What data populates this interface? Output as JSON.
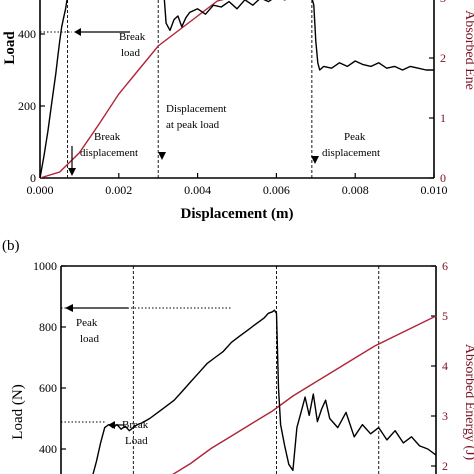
{
  "chart_data": [
    {
      "panel_label": "",
      "type": "line",
      "xlabel": "Displacement (m)",
      "ylabel": "Load",
      "ylabel_right": "Absorbed Ene",
      "xlim": [
        0.0,
        0.01
      ],
      "ylim": [
        0,
        600
      ],
      "ylim_right": [
        0,
        3.6
      ],
      "xticks": [
        "0.000",
        "0.002",
        "0.004",
        "0.006",
        "0.008",
        "0.010"
      ],
      "xtick_values": [
        0.0,
        0.002,
        0.004,
        0.006,
        0.008,
        0.01
      ],
      "yticks": [
        {
          "v": 0,
          "label": "0"
        },
        {
          "v": 200,
          "label": "200"
        },
        {
          "v": 400,
          "label": "400"
        }
      ],
      "yticks_right": [
        {
          "v": 0,
          "label": "0"
        },
        {
          "v": 1,
          "label": "1"
        },
        {
          "v": 2,
          "label": "2"
        },
        {
          "v": 3,
          "label": "3"
        }
      ],
      "series": [
        {
          "axis": "left",
          "color": "#000000",
          "x": [
            0.0,
            0.0001,
            0.0002,
            0.0003,
            0.0004,
            0.00045,
            0.0005,
            0.00055,
            0.0006,
            0.00065,
            0.0007,
            0.00075,
            0.0008,
            0.00085,
            0.0009,
            0.001,
            0.0011,
            0.0012,
            0.0014,
            0.0016,
            0.0018,
            0.002,
            0.0022,
            0.0024,
            0.0026,
            0.0028,
            0.0029,
            0.003,
            0.00305,
            0.0031,
            0.00315,
            0.0032,
            0.0033,
            0.0034,
            0.0035,
            0.0036,
            0.0037,
            0.0038,
            0.004,
            0.0042,
            0.0044,
            0.0046,
            0.0048,
            0.005,
            0.0052,
            0.0054,
            0.0056,
            0.0058,
            0.006,
            0.0062,
            0.0064,
            0.0066,
            0.0068,
            0.0069,
            0.00695,
            0.007,
            0.00705,
            0.0071,
            0.0072,
            0.0074,
            0.0076,
            0.0078,
            0.008,
            0.0082,
            0.0084,
            0.0086,
            0.0088,
            0.009,
            0.0092,
            0.0094,
            0.0096,
            0.0098,
            0.01
          ],
          "y": [
            0,
            60,
            130,
            210,
            290,
            335,
            380,
            420,
            445,
            470,
            520,
            560,
            590,
            610,
            640,
            660,
            640,
            650,
            650,
            640,
            650,
            640,
            645,
            640,
            650,
            640,
            660,
            650,
            580,
            620,
            600,
            430,
            410,
            440,
            450,
            420,
            445,
            460,
            470,
            455,
            480,
            475,
            490,
            470,
            495,
            480,
            500,
            490,
            505,
            495,
            500,
            510,
            505,
            500,
            480,
            380,
            320,
            300,
            310,
            305,
            320,
            310,
            325,
            315,
            310,
            320,
            305,
            310,
            300,
            310,
            305,
            300,
            300
          ]
        },
        {
          "axis": "right",
          "color": "#b0243a",
          "x": [
            0.0,
            0.0005,
            0.001,
            0.0015,
            0.002,
            0.0025,
            0.003,
            0.0035,
            0.004,
            0.0045,
            0.005,
            0.0055,
            0.006,
            0.0065,
            0.007
          ],
          "y": [
            0.0,
            0.1,
            0.42,
            0.9,
            1.4,
            1.8,
            2.2,
            2.45,
            2.7,
            2.95,
            3.15,
            3.35,
            3.55,
            3.75,
            3.95
          ]
        }
      ],
      "event_x": [
        0.0007,
        0.003,
        0.0069
      ],
      "break_load": 445,
      "annotations": {
        "break_load": "Break load",
        "break_displacement": "Break displacement",
        "displacement_peak_load": "Displacement at peak load",
        "peak_displacement": "Peak displacement"
      }
    },
    {
      "panel_label": "(b)",
      "type": "line",
      "xlabel": "",
      "ylabel": "Load (N)",
      "ylabel_right": "Absorbed Energy (J)",
      "ylim": [
        300,
        1000
      ],
      "ylim_right": [
        1.8,
        6.0
      ],
      "xlim": [
        0.0,
        0.01
      ],
      "yticks": [
        {
          "v": 400,
          "label": "400"
        },
        {
          "v": 600,
          "label": "600"
        },
        {
          "v": 800,
          "label": "800"
        },
        {
          "v": 1000,
          "label": "1000"
        }
      ],
      "yticks_right": [
        {
          "v": 2,
          "label": "2"
        },
        {
          "v": 3,
          "label": "3"
        },
        {
          "v": 4,
          "label": "4"
        },
        {
          "v": 5,
          "label": "5"
        },
        {
          "v": 6,
          "label": "6"
        }
      ],
      "series": [
        {
          "axis": "left",
          "color": "#000000",
          "x": [
            0.0016,
            0.0017,
            0.0018,
            0.0019,
            0.002,
            0.0021,
            0.0022,
            0.0023,
            0.0024,
            0.0025,
            0.0026,
            0.0027,
            0.0028,
            0.003,
            0.0032,
            0.0034,
            0.0036,
            0.0038,
            0.004,
            0.0042,
            0.0044,
            0.0046,
            0.0048,
            0.005,
            0.0052,
            0.0054,
            0.0056,
            0.0058,
            0.0059,
            0.006,
            0.00605,
            0.0061,
            0.00615,
            0.0062,
            0.0063,
            0.0064,
            0.0065,
            0.0066,
            0.0067,
            0.0068,
            0.0069,
            0.007,
            0.0071,
            0.0072,
            0.0073,
            0.0074,
            0.0076,
            0.0078,
            0.008,
            0.0082,
            0.0084,
            0.0086,
            0.0088,
            0.009,
            0.0092,
            0.0094,
            0.0096,
            0.0098,
            0.01
          ],
          "y": [
            310,
            360,
            420,
            470,
            480,
            470,
            480,
            465,
            475,
            460,
            470,
            480,
            485,
            500,
            520,
            540,
            560,
            590,
            620,
            650,
            680,
            700,
            720,
            750,
            770,
            790,
            810,
            830,
            845,
            850,
            855,
            845,
            600,
            480,
            410,
            350,
            330,
            470,
            520,
            570,
            510,
            580,
            490,
            530,
            560,
            500,
            470,
            520,
            440,
            480,
            450,
            470,
            430,
            460,
            420,
            440,
            410,
            400,
            380
          ],
          "x_note": "panel b displacement axis not printed in crop; x values placed on the same 0-0.01 scale as panel a"
        },
        {
          "axis": "right",
          "color": "#b0243a",
          "x": [
            0.0035,
            0.004,
            0.0045,
            0.005,
            0.0055,
            0.006,
            0.0065,
            0.007,
            0.0075,
            0.008,
            0.0085,
            0.009,
            0.0095,
            0.01
          ],
          "y": [
            1.8,
            2.05,
            2.35,
            2.6,
            2.85,
            3.1,
            3.4,
            3.65,
            3.9,
            4.15,
            4.4,
            4.6,
            4.8,
            5.0
          ]
        }
      ],
      "event_x": [
        0.0026,
        0.0061,
        0.0086
      ],
      "peak_load": 850,
      "break_load": 480,
      "annotations": {
        "peak_load": "Peak load",
        "break_load": "Break Load"
      }
    }
  ]
}
